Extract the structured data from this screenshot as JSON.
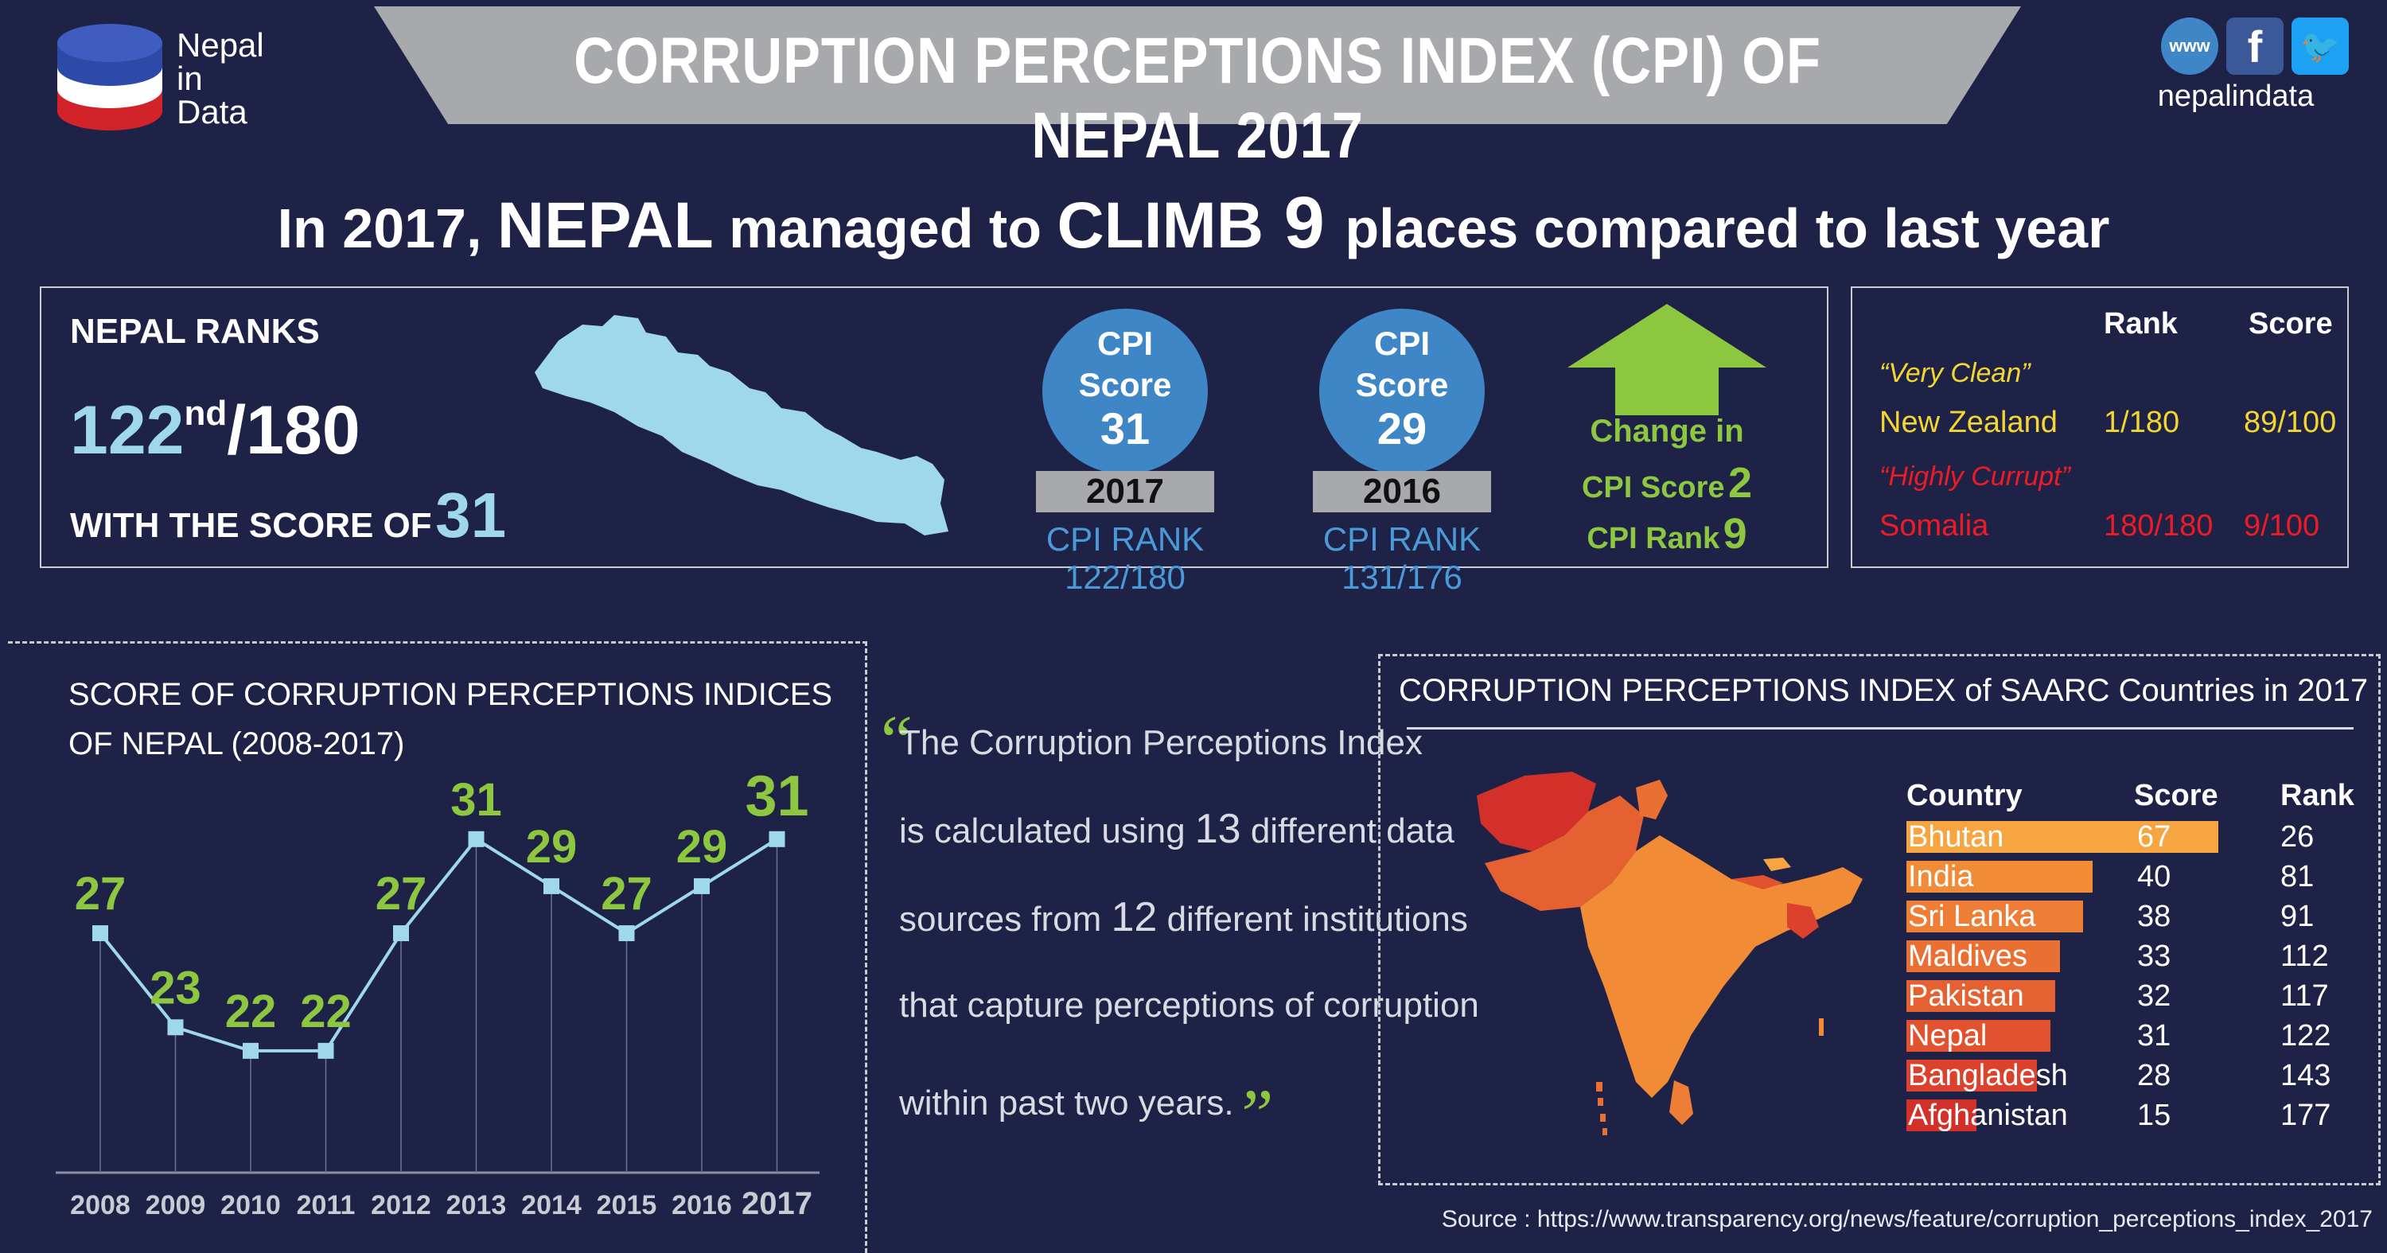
{
  "header": {
    "title": "CORRUPTION PERCEPTIONS INDEX (CPI) OF NEPAL 2017",
    "logo_lines": [
      "Nepal",
      "in",
      "Data"
    ],
    "social_icons": [
      "globe-www-icon",
      "facebook-icon",
      "twitter-icon"
    ],
    "www_label": "www",
    "social_handle": "nepalindata"
  },
  "headline": {
    "part1": "In 2017, ",
    "part2": "NEPAL",
    "part3": " managed to ",
    "part4": "CLIMB",
    "part5": " 9 ",
    "part6": "places compared to last year"
  },
  "nepal_ranks": {
    "label": "NEPAL RANKS",
    "rank": "122",
    "rank_suffix": "nd",
    "total": "/180",
    "score_label": "WITH THE SCORE OF",
    "score": "31"
  },
  "cpi_2017": {
    "line1": "CPI",
    "line2": "Score",
    "score": "31",
    "year": "2017",
    "rank_text": "CPI RANK 122/180"
  },
  "cpi_2016": {
    "line1": "CPI",
    "line2": "Score",
    "score": "29",
    "year": "2016",
    "rank_text": "CPI RANK 131/176"
  },
  "change": {
    "title": "Change in",
    "score_label": "CPI Score",
    "score_change": "2",
    "rank_label": "CPI Rank",
    "rank_change": "9"
  },
  "comparison": {
    "col_rank": "Rank",
    "col_score": "Score",
    "clean_label": "“Very Clean”",
    "clean_country": "New Zealand",
    "clean_rank": "1/180",
    "clean_score": "89/100",
    "corrupt_label": "“Highly Currupt”",
    "corrupt_country": "Somalia",
    "corrupt_rank": "180/180",
    "corrupt_score": "9/100"
  },
  "quote": {
    "open": "“",
    "l1": "The Corruption Perceptions Index",
    "l2a": "is calculated using ",
    "l2n": "13",
    "l2b": " different data",
    "l3a": "sources from ",
    "l3n": "12",
    "l3b": " different institutions",
    "l4": "that capture perceptions of corruption",
    "l5": "within past two years.",
    "close": "”"
  },
  "source": "Source : https://www.transparency.org/news/feature/corruption_perceptions_index_2017",
  "colors": {
    "background": "#1f2247",
    "accent_green": "#8dc63f",
    "light_blue": "#9ed8ea",
    "circle_blue": "#3f86c7",
    "yellow": "#f3d730",
    "red": "#ed1c24",
    "bar_orange": "#f7a541"
  },
  "chart_data": [
    {
      "type": "line",
      "title": "SCORE OF CORRUPTION PERCEPTIONS INDICES OF NEPAL (2008-2017)",
      "title_lines": [
        "SCORE OF CORRUPTION PERCEPTIONS INDICES",
        "OF NEPAL (2008-2017)"
      ],
      "categories": [
        "2008",
        "2009",
        "2010",
        "2011",
        "2012",
        "2013",
        "2014",
        "2015",
        "2016",
        "2017"
      ],
      "values": [
        27,
        23,
        22,
        22,
        27,
        31,
        29,
        27,
        29,
        31
      ],
      "xlabel": "",
      "ylabel": "",
      "grid": false
    },
    {
      "type": "bar",
      "title": "CORRUPTION PERCEPTIONS INDEX of SAARC Countries in 2017",
      "columns": [
        "Country",
        "Score",
        "Rank"
      ],
      "categories": [
        "Bhutan",
        "India",
        "Sri Lanka",
        "Maldives",
        "Pakistan",
        "Nepal",
        "Bangladesh",
        "Afghanistan"
      ],
      "values": [
        67,
        40,
        38,
        33,
        32,
        31,
        28,
        15
      ],
      "ranks": [
        "26",
        "81",
        "91",
        "112",
        "117",
        "122",
        "143",
        "177"
      ],
      "bar_colors": [
        "#f7a541",
        "#f18b36",
        "#ee7d35",
        "#ea6f33",
        "#e56131",
        "#e2522f",
        "#db412c",
        "#d4302a"
      ]
    }
  ]
}
